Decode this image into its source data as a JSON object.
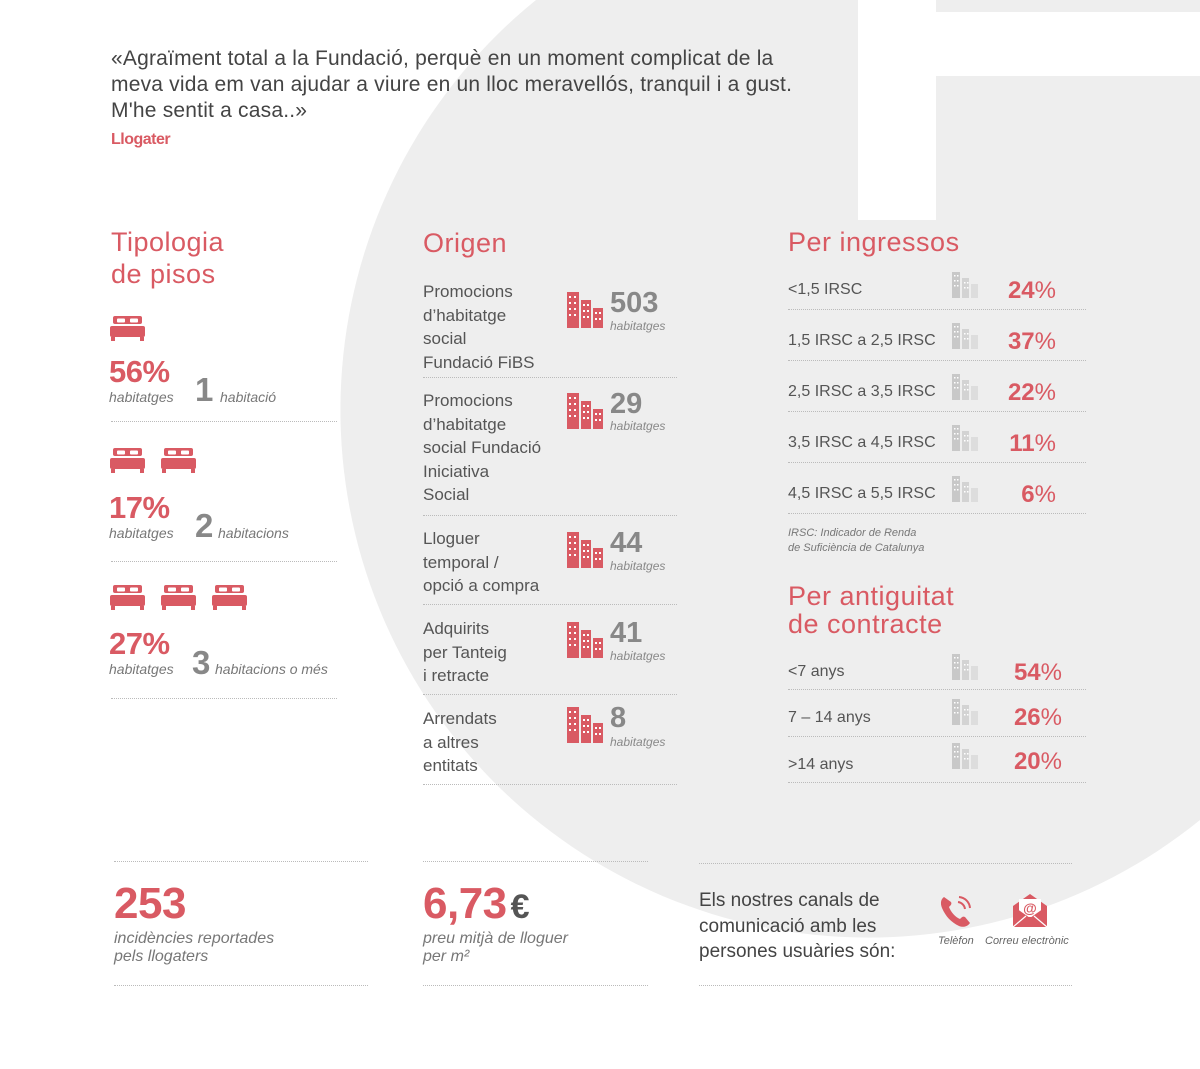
{
  "colors": {
    "accent": "#d95a63",
    "grey": "#888888",
    "shape": "#eeeeee"
  },
  "quote": {
    "lines": [
      "«Agraïment total a la Fundació, perquè en un moment complicat de la",
      "meva vida em van ajudar a viure en un lloc meravellós, tranquil i a gust.",
      "M'he sentit a casa..»"
    ],
    "author": "Llogater"
  },
  "tipologia": {
    "title_lines": [
      "Tipologia",
      "de pisos"
    ],
    "items": [
      {
        "beds": 1,
        "percent": "56%",
        "unit": "habitatges",
        "count": "1",
        "label": "habitació"
      },
      {
        "beds": 2,
        "percent": "17%",
        "unit": "habitatges",
        "count": "2",
        "label": "habitacions"
      },
      {
        "beds": 3,
        "percent": "27%",
        "unit": "habitatges",
        "count": "3",
        "label": "habitacions o més"
      }
    ]
  },
  "origen": {
    "title": "Origen",
    "items": [
      {
        "label_lines": [
          "Promocions",
          "d’habitatge",
          "social",
          "Fundació FiBS"
        ],
        "value": "503",
        "unit": "habitatges"
      },
      {
        "label_lines": [
          "Promocions",
          "d’habitatge",
          "social Fundació",
          "Iniciativa",
          "Social"
        ],
        "value": "29",
        "unit": "habitatges"
      },
      {
        "label_lines": [
          "Lloguer",
          "temporal /",
          "opció a compra"
        ],
        "value": "44",
        "unit": "habitatges"
      },
      {
        "label_lines": [
          "Adquirits",
          "per Tanteig",
          "i retracte"
        ],
        "value": "41",
        "unit": "habitatges"
      },
      {
        "label_lines": [
          "Arrendats",
          "a altres",
          "entitats"
        ],
        "value": "8",
        "unit": "habitatges"
      }
    ]
  },
  "ingressos": {
    "title": "Per ingressos",
    "items": [
      {
        "label": "<1,5 IRSC",
        "value": "24",
        "sym": "%"
      },
      {
        "label": "1,5 IRSC a 2,5 IRSC",
        "value": "37",
        "sym": "%"
      },
      {
        "label": "2,5 IRSC a 3,5 IRSC",
        "value": "22",
        "sym": "%"
      },
      {
        "label": "3,5 IRSC a 4,5 IRSC",
        "value": "11",
        "sym": "%"
      },
      {
        "label": "4,5 IRSC a 5,5 IRSC",
        "value": "6",
        "sym": "%"
      }
    ],
    "note_lines": [
      "IRSC: Indicador de Renda",
      "de Suficiència de Catalunya"
    ]
  },
  "antiguitat": {
    "title_lines": [
      "Per antiguitat",
      "de contracte"
    ],
    "items": [
      {
        "label": "<7 anys",
        "value": "54",
        "sym": "%"
      },
      {
        "label": "7 – 14 anys",
        "value": "26",
        "sym": "%"
      },
      {
        "label": ">14 anys",
        "value": "20",
        "sym": "%"
      }
    ]
  },
  "footer": {
    "incidencies": {
      "value": "253",
      "label_lines": [
        "incidències reportades",
        "pels llogaters"
      ]
    },
    "preu": {
      "value": "6,73",
      "currency": "€",
      "label_lines": [
        "preu mitjà de lloguer",
        "per m²"
      ]
    },
    "canals": {
      "text_lines": [
        "Els nostres canals de",
        "comunicació amb les",
        "persones usuàries són:"
      ],
      "phone_label": "Telèfon",
      "email_label": "Correu electrònic"
    }
  }
}
